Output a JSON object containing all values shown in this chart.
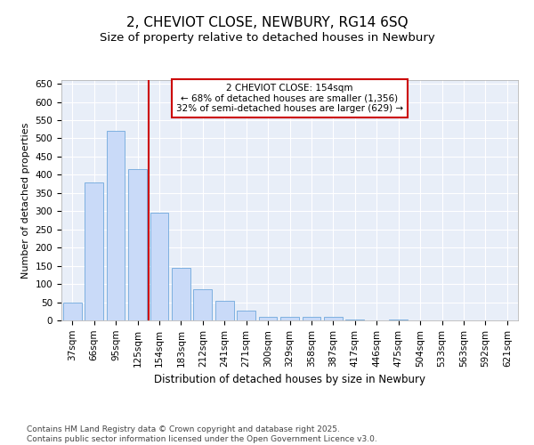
{
  "title": "2, CHEVIOT CLOSE, NEWBURY, RG14 6SQ",
  "subtitle": "Size of property relative to detached houses in Newbury",
  "xlabel": "Distribution of detached houses by size in Newbury",
  "ylabel": "Number of detached properties",
  "categories": [
    "37sqm",
    "66sqm",
    "95sqm",
    "125sqm",
    "154sqm",
    "183sqm",
    "212sqm",
    "241sqm",
    "271sqm",
    "300sqm",
    "329sqm",
    "358sqm",
    "387sqm",
    "417sqm",
    "446sqm",
    "475sqm",
    "504sqm",
    "533sqm",
    "563sqm",
    "592sqm",
    "621sqm"
  ],
  "values": [
    50,
    380,
    520,
    415,
    295,
    145,
    85,
    55,
    28,
    10,
    10,
    10,
    10,
    2,
    0,
    2,
    0,
    0,
    0,
    0,
    0
  ],
  "bar_color": "#c9daf8",
  "bar_edge_color": "#6fa8dc",
  "vline_color": "#cc0000",
  "vline_x_index": 3.5,
  "annotation_line1": "2 CHEVIOT CLOSE: 154sqm",
  "annotation_line2": "← 68% of detached houses are smaller (1,356)",
  "annotation_line3": "32% of semi-detached houses are larger (629) →",
  "annotation_box_color": "#ffffff",
  "annotation_box_edge_color": "#cc0000",
  "footer_text": "Contains HM Land Registry data © Crown copyright and database right 2025.\nContains public sector information licensed under the Open Government Licence v3.0.",
  "ylim": [
    0,
    660
  ],
  "yticks": [
    0,
    50,
    100,
    150,
    200,
    250,
    300,
    350,
    400,
    450,
    500,
    550,
    600,
    650
  ],
  "background_color": "#e8eef8",
  "grid_color": "#ffffff",
  "title_fontsize": 11,
  "subtitle_fontsize": 9.5,
  "tick_fontsize": 7.5,
  "ylabel_fontsize": 8,
  "xlabel_fontsize": 8.5,
  "footer_fontsize": 6.5
}
